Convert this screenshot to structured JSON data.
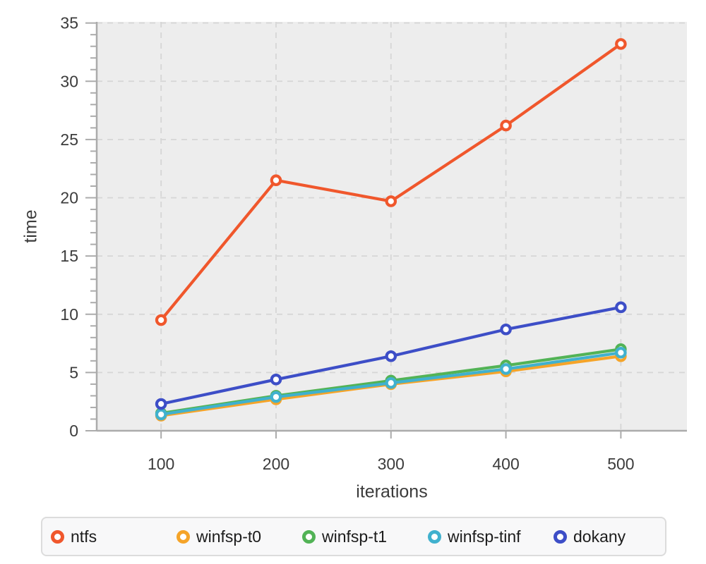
{
  "chart_data": {
    "type": "line",
    "title": "",
    "xlabel": "iterations",
    "ylabel": "time",
    "x": [
      100,
      200,
      300,
      400,
      500
    ],
    "series": [
      {
        "name": "ntfs",
        "color": "#F0572C",
        "values": [
          9.5,
          21.5,
          19.7,
          26.2,
          33.2
        ]
      },
      {
        "name": "winfsp-t0",
        "color": "#F5A429",
        "values": [
          1.3,
          2.7,
          4.0,
          5.1,
          6.4
        ]
      },
      {
        "name": "winfsp-t1",
        "color": "#52B356",
        "values": [
          1.5,
          3.0,
          4.3,
          5.6,
          7.0
        ]
      },
      {
        "name": "winfsp-tinf",
        "color": "#40B1CE",
        "values": [
          1.4,
          2.9,
          4.1,
          5.3,
          6.7
        ]
      },
      {
        "name": "dokany",
        "color": "#3D4EC7",
        "values": [
          2.3,
          4.4,
          6.4,
          8.7,
          10.6
        ]
      }
    ],
    "xticks": [
      100,
      200,
      300,
      400,
      500
    ],
    "yticks": [
      0,
      5,
      10,
      15,
      20,
      25,
      30,
      35
    ],
    "y_minor_step": 1,
    "xlim": [
      44,
      557.5
    ],
    "ylim": [
      0,
      35.1
    ],
    "grid": true,
    "grid_style": "dashed",
    "legend_position": "bottom",
    "marker": "open-circle",
    "plot_bg": "#EDEDED",
    "grid_color": "#D6D6D6",
    "axis_color": "#ABABAB",
    "tick_label_color": "#3C3C3C"
  }
}
